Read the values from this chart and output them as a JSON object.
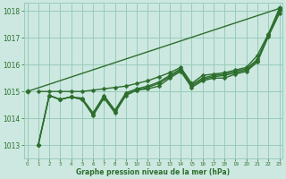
{
  "xlabel": "Graphe pression niveau de la mer (hPa)",
  "ylim": [
    1012.5,
    1018.3
  ],
  "xlim": [
    -0.3,
    23.3
  ],
  "yticks": [
    1013,
    1014,
    1015,
    1016,
    1017,
    1018
  ],
  "xticks": [
    0,
    1,
    2,
    3,
    4,
    5,
    6,
    7,
    8,
    9,
    10,
    11,
    12,
    13,
    14,
    15,
    16,
    17,
    18,
    19,
    20,
    21,
    22,
    23
  ],
  "bg_color": "#cce8e0",
  "grid_color": "#99ccbb",
  "line_color": "#2d6e2d",
  "line_width": 1.0,
  "marker": "D",
  "marker_size": 2.5,
  "series": [
    [
      1013.0,
      1014.85,
      1014.7,
      1014.8,
      1014.7,
      1014.1,
      1014.75,
      1014.2,
      1014.85,
      1015.05,
      1015.1,
      1015.2,
      1015.5,
      1015.75,
      1015.15,
      1015.4,
      1015.5,
      1015.5,
      1015.65,
      1015.75,
      1016.1,
      1017.05,
      1017.9
    ],
    [
      1013.0,
      1014.85,
      1014.7,
      1014.8,
      1014.7,
      1014.15,
      1014.8,
      1014.25,
      1014.9,
      1015.05,
      1015.15,
      1015.3,
      1015.55,
      1015.8,
      1015.2,
      1015.45,
      1015.55,
      1015.6,
      1015.7,
      1015.8,
      1016.15,
      1017.1,
      1018.0
    ],
    [
      1013.0,
      1014.85,
      1014.7,
      1014.8,
      1014.75,
      1014.2,
      1014.85,
      1014.3,
      1014.95,
      1015.1,
      1015.2,
      1015.35,
      1015.6,
      1015.85,
      1015.25,
      1015.5,
      1015.6,
      1015.65,
      1015.75,
      1015.85,
      1016.2,
      1017.1,
      1018.05
    ],
    [
      1015.0,
      1015.0,
      1015.0,
      1015.0,
      1015.0,
      1015.05,
      1015.1,
      1015.15,
      1015.2,
      1015.3,
      1015.4,
      1015.55,
      1015.7,
      1015.9,
      1015.3,
      1015.6,
      1015.65,
      1015.7,
      1015.8,
      1015.9,
      1016.35,
      1017.15,
      1018.1
    ]
  ],
  "straight_line": [
    1015.0,
    1018.1
  ]
}
